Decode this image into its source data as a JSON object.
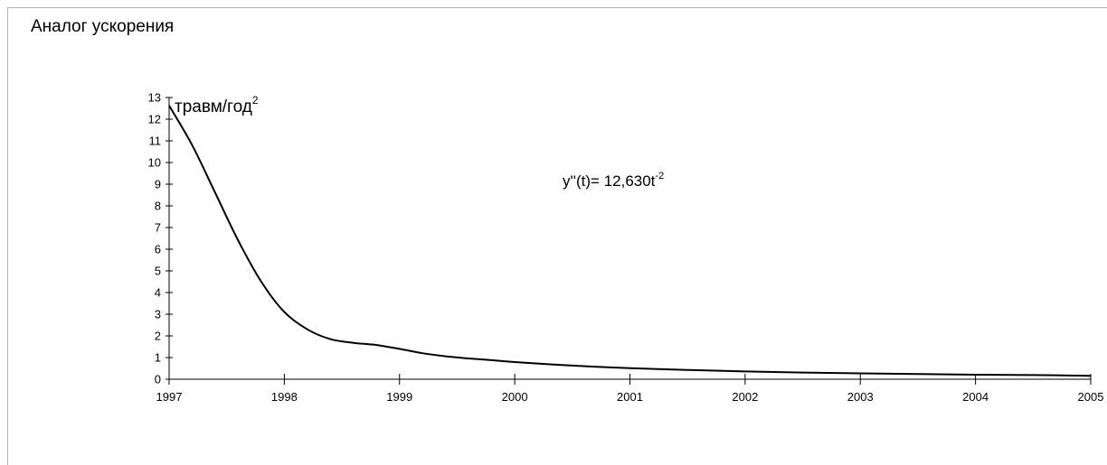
{
  "chart_data": {
    "type": "line",
    "title": "Аналог ускорения",
    "xlabel": "",
    "ylabel": "травм/год",
    "ylabel_sup": "2",
    "annotation": "y''(t)= 12,630t",
    "annotation_sup": "-2",
    "xlim": [
      1997,
      2005
    ],
    "ylim": [
      0,
      13
    ],
    "x_ticks": [
      1997,
      1998,
      1999,
      2000,
      2001,
      2002,
      2003,
      2004,
      2005
    ],
    "y_ticks": [
      0,
      1,
      2,
      3,
      4,
      5,
      6,
      7,
      8,
      9,
      10,
      11,
      12,
      13
    ],
    "grid": false,
    "legend": "none",
    "line_color": "#000000",
    "series": [
      {
        "x": [
          1997,
          1997.2,
          1997.4,
          1997.6,
          1997.8,
          1998,
          1998.2,
          1998.4,
          1998.6,
          1998.8,
          1999,
          1999.2,
          1999.4,
          1999.6,
          1999.8,
          2000,
          2000.5,
          2001,
          2001.5,
          2002,
          2002.5,
          2003,
          2003.5,
          2004,
          2004.5,
          2005
        ],
        "y": [
          12.63,
          10.8,
          8.6,
          6.4,
          4.5,
          3.1,
          2.3,
          1.85,
          1.68,
          1.58,
          1.4,
          1.2,
          1.06,
          0.96,
          0.88,
          0.79,
          0.63,
          0.51,
          0.43,
          0.36,
          0.31,
          0.27,
          0.24,
          0.21,
          0.19,
          0.16
        ]
      }
    ]
  }
}
